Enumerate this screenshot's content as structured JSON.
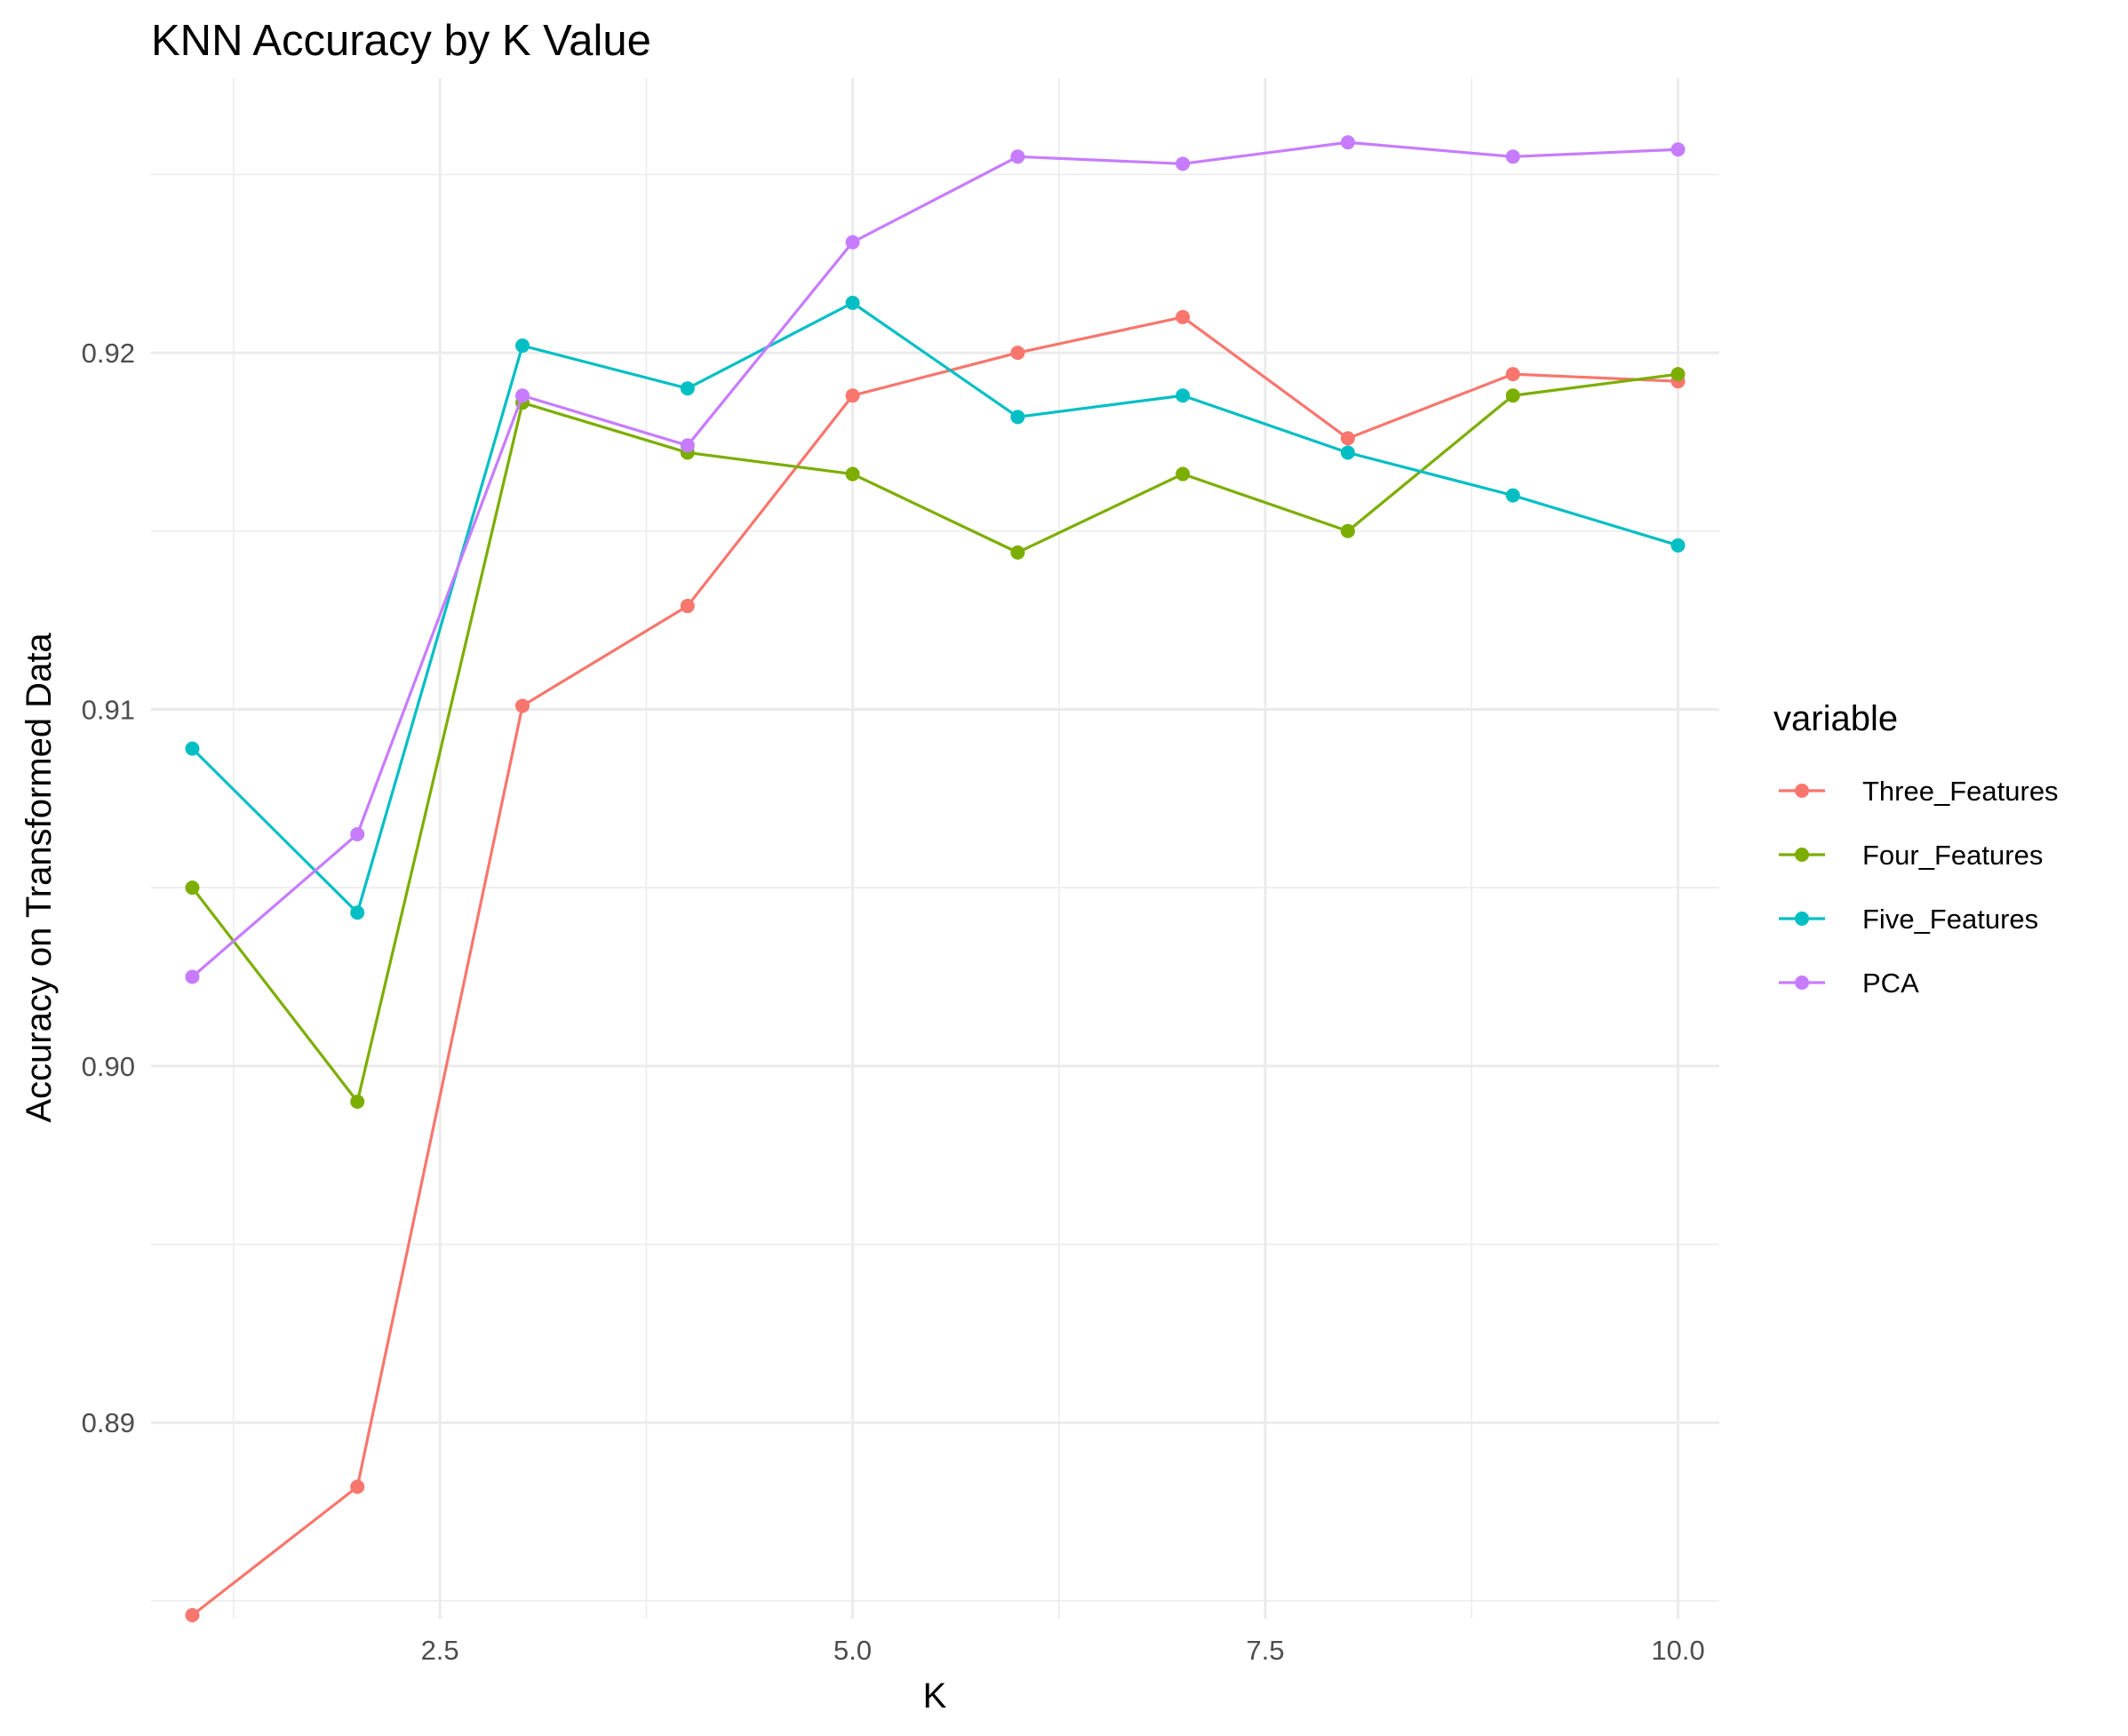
{
  "chart_data": {
    "type": "line",
    "title": "KNN Accuracy by K Value",
    "xlabel": "K",
    "ylabel": "Accuracy on Transformed Data",
    "x": [
      1,
      2,
      3,
      4,
      5,
      6,
      7,
      8,
      9,
      10
    ],
    "xlim": [
      0.75,
      10.25
    ],
    "ylim": [
      0.8845,
      0.9277
    ],
    "x_ticks": [
      2.5,
      5.0,
      7.5,
      10.0
    ],
    "x_tick_labels": [
      "2.5",
      "5.0",
      "7.5",
      "10.0"
    ],
    "y_ticks": [
      0.89,
      0.9,
      0.91,
      0.92
    ],
    "y_tick_labels": [
      "0.89",
      "0.90",
      "0.91",
      "0.92"
    ],
    "grid": true,
    "legend": {
      "title": "variable",
      "position": "right"
    },
    "series": [
      {
        "name": "Three_Features",
        "color": "#F8766D",
        "values": [
          0.8846,
          0.8882,
          0.9101,
          0.9129,
          0.9188,
          0.92,
          0.921,
          0.9176,
          0.9194,
          0.9192
        ]
      },
      {
        "name": "Four_Features",
        "color": "#7CAE00",
        "values": [
          0.905,
          0.899,
          0.9186,
          0.9172,
          0.9166,
          0.9144,
          0.9166,
          0.915,
          0.9188,
          0.9194
        ]
      },
      {
        "name": "Five_Features",
        "color": "#00BFC4",
        "values": [
          0.9089,
          0.9043,
          0.9202,
          0.919,
          0.9214,
          0.9182,
          0.9188,
          0.9172,
          0.916,
          0.9146
        ]
      },
      {
        "name": "PCA",
        "color": "#C77CFF",
        "values": [
          0.9025,
          0.9065,
          0.9188,
          0.9174,
          0.9231,
          0.9255,
          0.9253,
          0.9259,
          0.9255,
          0.9257
        ]
      }
    ]
  }
}
